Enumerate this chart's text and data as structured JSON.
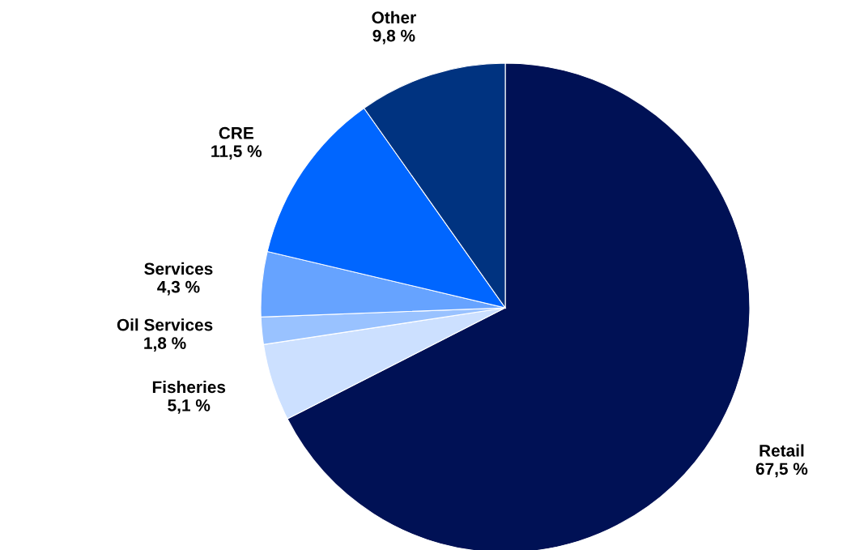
{
  "chart_data": {
    "type": "pie",
    "categories": [
      "Retail",
      "Fisheries",
      "Oil Services",
      "Services",
      "CRE",
      "Other"
    ],
    "values": [
      67.5,
      5.1,
      1.8,
      4.3,
      11.5,
      9.8
    ],
    "value_labels": [
      "67,5 %",
      "5,1 %",
      "1,8 %",
      "4,3 %",
      "11,5 %",
      "9,8 %"
    ],
    "colors": [
      "#001155",
      "#cce0ff",
      "#99c2ff",
      "#66a3ff",
      "#0066ff",
      "#003380"
    ],
    "legend": false
  }
}
